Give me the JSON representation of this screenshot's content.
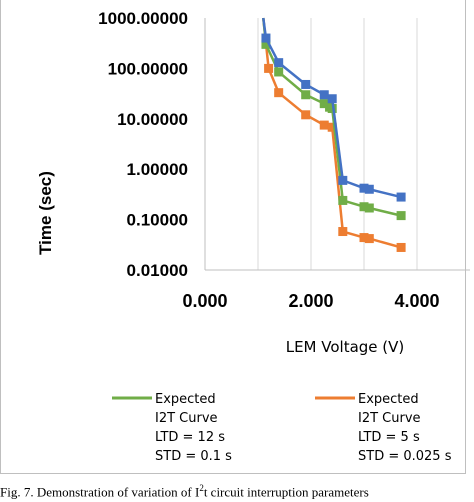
{
  "chart_data": {
    "type": "line",
    "title": "",
    "xlabel": "LEM Voltage (V)",
    "ylabel": "Time (sec)",
    "xlim": [
      0,
      5
    ],
    "ylim": [
      0.01,
      1000
    ],
    "y_scale": "log",
    "x_ticks": [
      "0.000",
      "2.000",
      "4.000"
    ],
    "x_tick_values": [
      0,
      2,
      4
    ],
    "y_ticks": [
      "1000.00000",
      "100.00000",
      "10.00000",
      "1.00000",
      "0.10000",
      "0.01000"
    ],
    "y_tick_values": [
      1000,
      100,
      10,
      1,
      0.1,
      0.01
    ],
    "grid": "vertical",
    "legend_position": "bottom",
    "series": [
      {
        "name": "",
        "color": "#4472c4",
        "markers": true,
        "x": [
          1.1,
          1.15,
          1.39,
          1.9,
          2.25,
          2.4,
          2.6,
          3.0,
          3.1,
          3.7
        ],
        "y": [
          1000,
          400,
          130,
          48,
          30,
          25,
          0.6,
          0.42,
          0.4,
          0.28
        ]
      },
      {
        "name": "Expected I2T Curve LTD = 12 s STD = 0.1 s",
        "color": "#70ad47",
        "markers": true,
        "x": [
          1.1,
          1.15,
          1.39,
          1.9,
          2.25,
          2.35,
          2.4,
          2.6,
          3.0,
          3.1,
          3.7
        ],
        "y": [
          1000,
          300,
          85,
          30,
          20,
          17,
          16,
          0.24,
          0.18,
          0.17,
          0.12
        ]
      },
      {
        "name": "Expected I2T Curve LTD = 5 s STD = 0.025 s",
        "color": "#ed7d31",
        "markers": true,
        "x": [
          1.1,
          1.2,
          1.39,
          1.9,
          2.25,
          2.4,
          2.6,
          3.0,
          3.1,
          3.7
        ],
        "y": [
          1000,
          100,
          33,
          12,
          7.5,
          6.8,
          0.058,
          0.044,
          0.042,
          0.028
        ]
      }
    ],
    "legend": [
      {
        "color": "#70ad47",
        "lines": [
          "Expected",
          "I2T Curve",
          "LTD = 12 s",
          "STD = 0.1 s"
        ]
      },
      {
        "color": "#ed7d31",
        "lines": [
          "Expected",
          "I2T Curve",
          "LTD = 5 s",
          "STD = 0.025 s"
        ]
      }
    ]
  },
  "caption": {
    "prefix": "Fig. 7. Demonstration of variation of I",
    "superscript": "2",
    "suffix": "t circuit interruption parameters"
  }
}
